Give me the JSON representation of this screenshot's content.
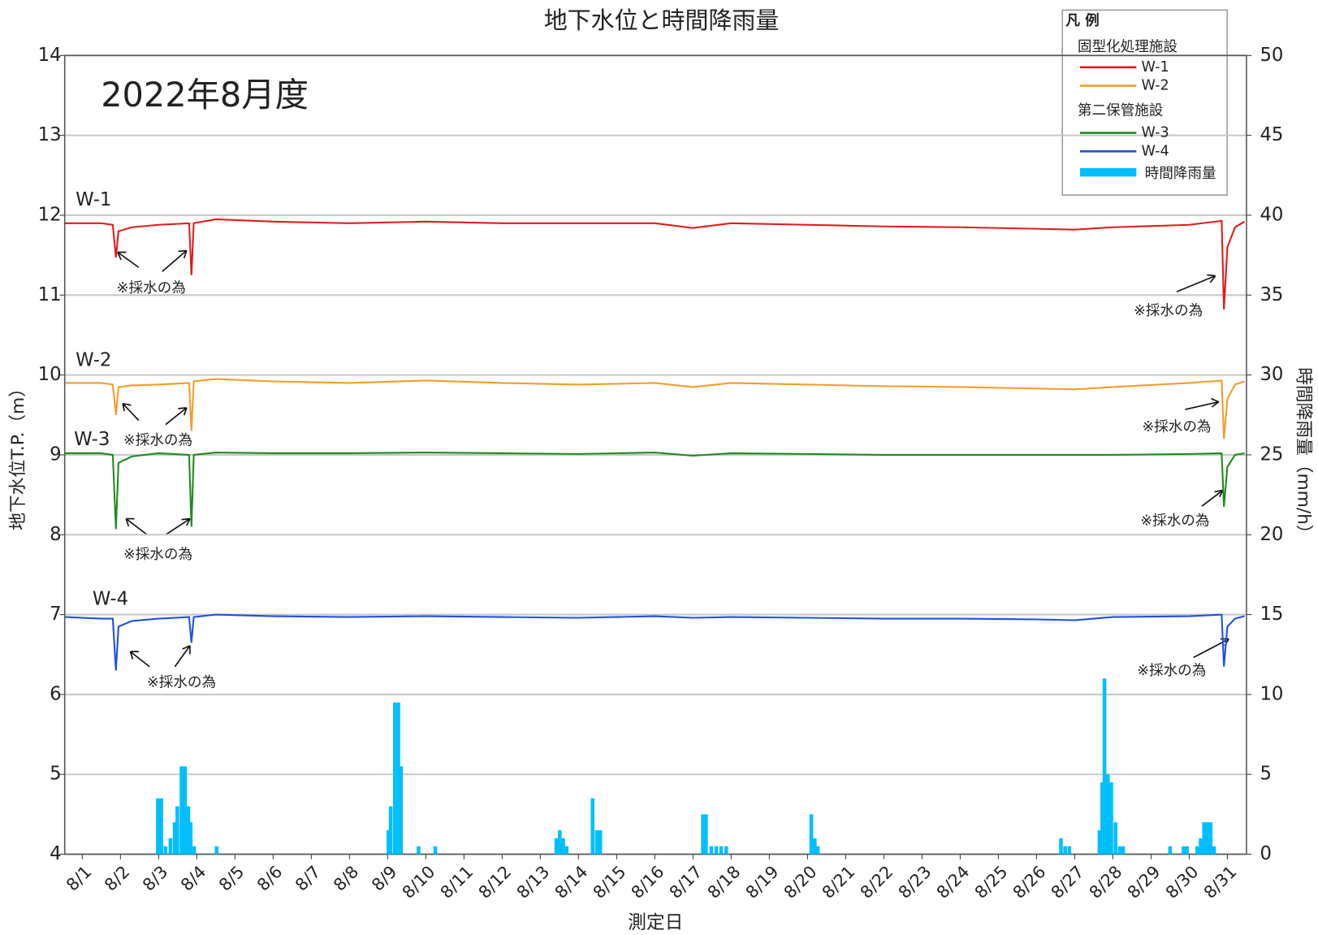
{
  "chart_data": {
    "type": "line",
    "title": "地下水位と時間降雨量",
    "subtitle": "2022年8月度",
    "x_label": "測定日",
    "y_label": "地下水位T.P.（m）",
    "y2_label": "時間降雨量（mm/h）",
    "legend_title": "凡 例",
    "legend_groups": [
      "固型化処理施設",
      "第二保管施設"
    ],
    "legend": "upper right",
    "grid": true,
    "xlim": [
      0.54,
      31.5
    ],
    "xticks": [
      {
        "value": 1,
        "label": "8/1"
      },
      {
        "value": 2,
        "label": "8/2"
      },
      {
        "value": 3,
        "label": "8/3"
      },
      {
        "value": 4,
        "label": "8/4"
      },
      {
        "value": 5,
        "label": "8/5"
      },
      {
        "value": 6,
        "label": "8/6"
      },
      {
        "value": 7,
        "label": "8/7"
      },
      {
        "value": 8,
        "label": "8/8"
      },
      {
        "value": 9,
        "label": "8/9"
      },
      {
        "value": 10,
        "label": "8/10"
      },
      {
        "value": 11,
        "label": "8/11"
      },
      {
        "value": 12,
        "label": "8/12"
      },
      {
        "value": 13,
        "label": "8/13"
      },
      {
        "value": 14,
        "label": "8/14"
      },
      {
        "value": 15,
        "label": "8/15"
      },
      {
        "value": 16,
        "label": "8/16"
      },
      {
        "value": 17,
        "label": "8/17"
      },
      {
        "value": 18,
        "label": "8/18"
      },
      {
        "value": 19,
        "label": "8/19"
      },
      {
        "value": 20,
        "label": "8/20"
      },
      {
        "value": 21,
        "label": "8/21"
      },
      {
        "value": 22,
        "label": "8/22"
      },
      {
        "value": 23,
        "label": "8/23"
      },
      {
        "value": 24,
        "label": "8/24"
      },
      {
        "value": 25,
        "label": "8/25"
      },
      {
        "value": 26,
        "label": "8/26"
      },
      {
        "value": 27,
        "label": "8/27"
      },
      {
        "value": 28,
        "label": "8/28"
      },
      {
        "value": 29,
        "label": "8/29"
      },
      {
        "value": 30,
        "label": "8/30"
      },
      {
        "value": 31,
        "label": "8/31"
      }
    ],
    "ylim": [
      4,
      14
    ],
    "yticks": [
      4,
      5,
      6,
      7,
      8,
      9,
      10,
      11,
      12,
      13,
      14
    ],
    "y2lim": [
      0,
      50
    ],
    "y2ticks": [
      0,
      5,
      10,
      15,
      20,
      25,
      30,
      35,
      40,
      45,
      50
    ],
    "x": [
      0.55,
      1.5,
      1.8,
      1.88,
      1.95,
      2.3,
      3.0,
      3.8,
      3.86,
      3.92,
      4.5,
      6,
      8,
      10,
      12,
      14,
      16,
      17,
      18,
      20,
      22,
      24,
      26,
      27,
      28,
      30,
      30.85,
      30.91,
      31.0,
      31.2,
      31.45
    ],
    "series": [
      {
        "name": "W-1",
        "color": "#e01b1b",
        "values": [
          11.9,
          11.9,
          11.88,
          11.47,
          11.8,
          11.85,
          11.88,
          11.9,
          11.25,
          11.9,
          11.95,
          11.92,
          11.9,
          11.92,
          11.9,
          11.9,
          11.9,
          11.84,
          11.9,
          11.88,
          11.86,
          11.85,
          11.83,
          11.82,
          11.85,
          11.88,
          11.93,
          10.82,
          11.6,
          11.85,
          11.92
        ]
      },
      {
        "name": "W-2",
        "color": "#f39c2b",
        "values": [
          9.9,
          9.9,
          9.88,
          9.5,
          9.85,
          9.87,
          9.88,
          9.9,
          9.3,
          9.92,
          9.95,
          9.92,
          9.9,
          9.93,
          9.9,
          9.88,
          9.9,
          9.85,
          9.9,
          9.88,
          9.86,
          9.85,
          9.83,
          9.82,
          9.85,
          9.9,
          9.93,
          9.2,
          9.7,
          9.88,
          9.92
        ]
      },
      {
        "name": "W-3",
        "color": "#1e8a1e",
        "values": [
          9.02,
          9.02,
          9.0,
          8.07,
          8.9,
          8.98,
          9.02,
          9.0,
          8.1,
          9.0,
          9.03,
          9.02,
          9.02,
          9.03,
          9.02,
          9.01,
          9.03,
          8.99,
          9.02,
          9.01,
          9.0,
          9.0,
          9.0,
          9.0,
          9.0,
          9.01,
          9.02,
          8.35,
          8.85,
          9.0,
          9.02
        ]
      },
      {
        "name": "W-4",
        "color": "#1f4fe0",
        "values": [
          6.97,
          6.95,
          6.95,
          6.3,
          6.85,
          6.92,
          6.95,
          6.97,
          6.65,
          6.97,
          7.0,
          6.98,
          6.97,
          6.98,
          6.97,
          6.96,
          6.98,
          6.96,
          6.97,
          6.96,
          6.95,
          6.95,
          6.94,
          6.93,
          6.97,
          6.98,
          7.0,
          6.35,
          6.85,
          6.95,
          6.98
        ]
      },
      {
        "name": "時間降雨量",
        "type": "bar",
        "axis": "y2",
        "color": "#00bfff",
        "x": [
          2.98,
          3.07,
          3.18,
          3.31,
          3.42,
          3.49,
          3.6,
          3.69,
          3.78,
          3.84,
          3.93,
          4.52,
          9.02,
          9.08,
          9.19,
          9.28,
          9.35,
          9.81,
          10.25,
          13.42,
          13.51,
          13.6,
          13.69,
          14.37,
          14.48,
          14.57,
          17.26,
          17.34,
          17.48,
          17.61,
          17.74,
          17.87,
          20.1,
          20.19,
          20.27,
          26.64,
          26.75,
          26.86,
          27.65,
          27.72,
          27.78,
          27.87,
          27.96,
          28.07,
          28.18,
          28.27,
          29.5,
          29.85,
          29.94,
          30.21,
          30.3,
          30.39,
          30.48,
          30.56,
          30.65
        ],
        "values": [
          3.5,
          3.5,
          0.5,
          1,
          2,
          3,
          5.5,
          5.5,
          3,
          2,
          0.5,
          0.5,
          1.5,
          3,
          9.5,
          9.5,
          5.5,
          0.5,
          0.5,
          1,
          1.5,
          1,
          0.5,
          3.5,
          1.5,
          1.5,
          2.5,
          2.5,
          0.5,
          0.5,
          0.5,
          0.5,
          2.5,
          1,
          0.5,
          1,
          0.5,
          0.5,
          1.5,
          4.5,
          11,
          5,
          4.5,
          2,
          0.5,
          0.5,
          0.5,
          0.5,
          0.5,
          0.5,
          1,
          2,
          2,
          2,
          0.5
        ]
      }
    ],
    "annotations": [
      "※採水の為",
      "※採水の為",
      "※採水の為",
      "※採水の為",
      "※採水の為",
      "※採水の為",
      "※採水の為",
      "※採水の為"
    ]
  }
}
